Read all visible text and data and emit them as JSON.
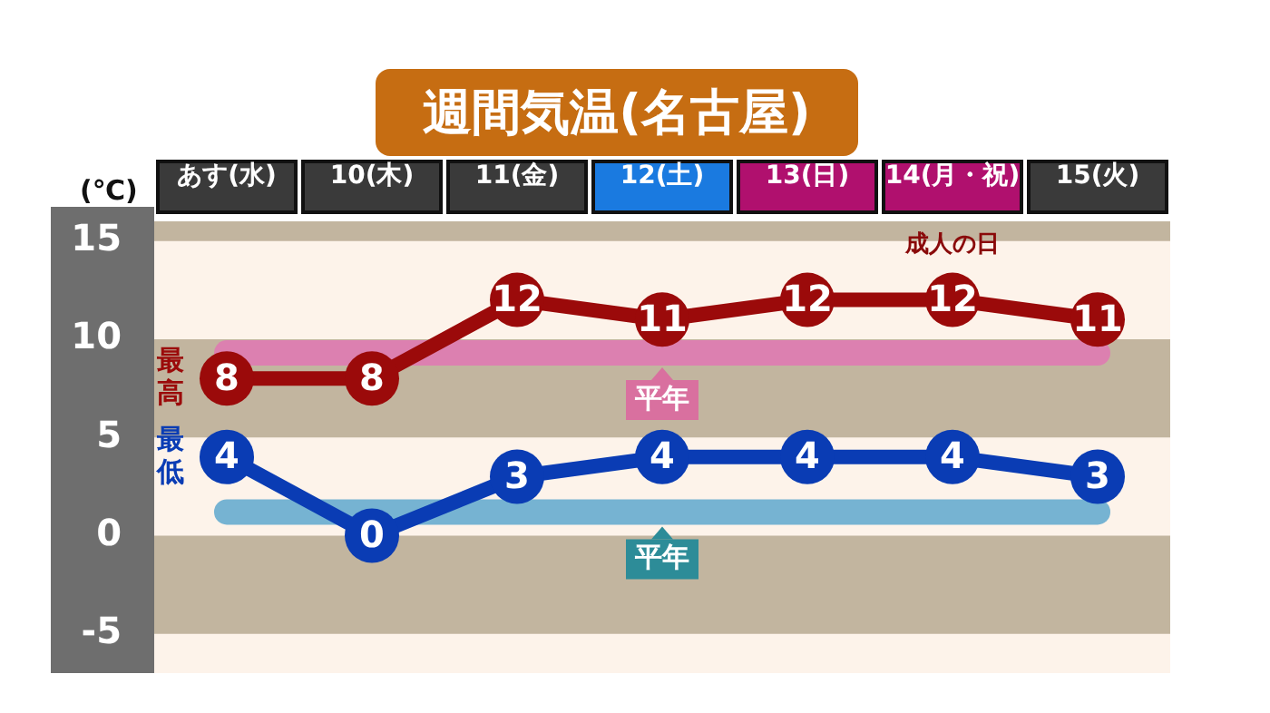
{
  "chart_data": {
    "type": "line",
    "title": "週間気温(名古屋)",
    "ylabel": "(℃)",
    "categories": [
      "あす(水)",
      "10(木)",
      "11(金)",
      "12(土)",
      "13(日)",
      "14(月・祝)",
      "15(火)"
    ],
    "series": [
      {
        "name": "最高",
        "color": "#9b0a0a",
        "values": [
          8,
          8,
          12,
          11,
          12,
          12,
          11
        ]
      },
      {
        "name": "最低",
        "color": "#0a3cb4",
        "values": [
          4,
          0,
          3,
          4,
          4,
          4,
          3
        ]
      }
    ],
    "ylim": [
      -7,
      16
    ],
    "yticks": [
      -5,
      0,
      5,
      10,
      15
    ],
    "ref_lines": [
      {
        "axis": "y",
        "value": 9.3,
        "label": "平年",
        "color": "#dc80b0"
      },
      {
        "axis": "y",
        "value": 1.2,
        "label": "平年",
        "color": "#76b3d2"
      }
    ],
    "bands": [
      {
        "axis": "y",
        "from": 15,
        "to": 16,
        "color": "#c2b59f"
      },
      {
        "axis": "y",
        "from": 5,
        "to": 10,
        "color": "#c2b59f"
      },
      {
        "axis": "y",
        "from": -5,
        "to": 0,
        "color": "#c2b59f"
      }
    ],
    "annotations": [
      "成人の日"
    ],
    "data_labels": true,
    "marker": "circle",
    "line_style": "solid",
    "grid": false,
    "legend": false
  }
}
